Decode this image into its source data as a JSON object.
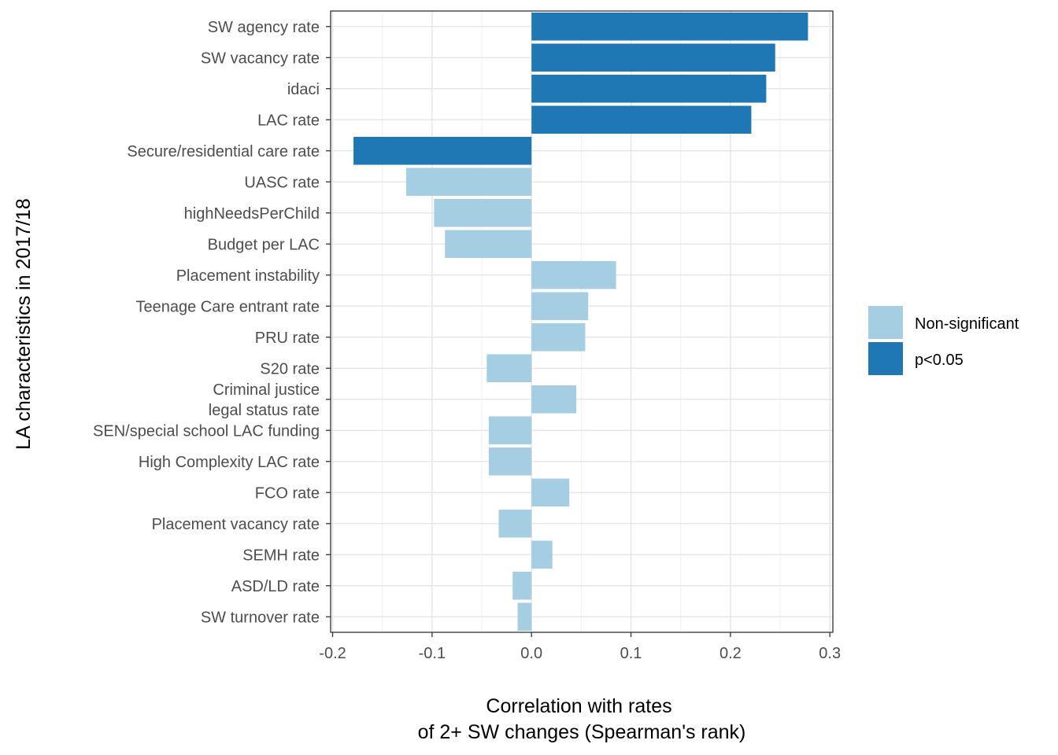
{
  "chart_data": {
    "type": "bar",
    "orientation": "horizontal",
    "title": "",
    "xlabel": [
      "Correlation with rates",
      "of 2+ SW changes (Spearman's rank)"
    ],
    "ylabel": "LA characteristics in 2017/18",
    "xlim": [
      -0.202,
      0.303
    ],
    "xticks": [
      -0.2,
      -0.1,
      0.0,
      0.1,
      0.2,
      0.3
    ],
    "xtick_labels": [
      "-0.2",
      "-0.1",
      "0.0",
      "0.1",
      "0.2",
      "0.3"
    ],
    "grid": true,
    "legend_position": "right",
    "legend": [
      {
        "key": "ns",
        "label": "Non-significant",
        "color": "#a6cee3"
      },
      {
        "key": "sig",
        "label": "p<0.05",
        "color": "#1f78b4"
      }
    ],
    "categories": [
      [
        "SW agency rate"
      ],
      [
        "SW vacancy rate"
      ],
      [
        "idaci"
      ],
      [
        "LAC rate"
      ],
      [
        "Secure/residential care rate"
      ],
      [
        "UASC rate"
      ],
      [
        "highNeedsPerChild"
      ],
      [
        "Budget per LAC"
      ],
      [
        "Placement instability"
      ],
      [
        "Teenage Care entrant rate"
      ],
      [
        "PRU rate"
      ],
      [
        "S20 rate"
      ],
      [
        "Criminal justice",
        "legal status rate"
      ],
      [
        "SEN/special school LAC funding"
      ],
      [
        "High Complexity LAC rate"
      ],
      [
        "FCO rate"
      ],
      [
        "Placement vacancy rate"
      ],
      [
        "SEMH rate"
      ],
      [
        "ASD/LD rate"
      ],
      [
        "SW turnover rate"
      ]
    ],
    "values": [
      0.278,
      0.245,
      0.236,
      0.221,
      -0.179,
      -0.126,
      -0.098,
      -0.087,
      0.085,
      0.057,
      0.054,
      -0.045,
      0.045,
      -0.043,
      -0.043,
      0.038,
      -0.033,
      0.021,
      -0.019,
      -0.014
    ],
    "significance": [
      "sig",
      "sig",
      "sig",
      "sig",
      "sig",
      "ns",
      "ns",
      "ns",
      "ns",
      "ns",
      "ns",
      "ns",
      "ns",
      "ns",
      "ns",
      "ns",
      "ns",
      "ns",
      "ns",
      "ns"
    ]
  }
}
